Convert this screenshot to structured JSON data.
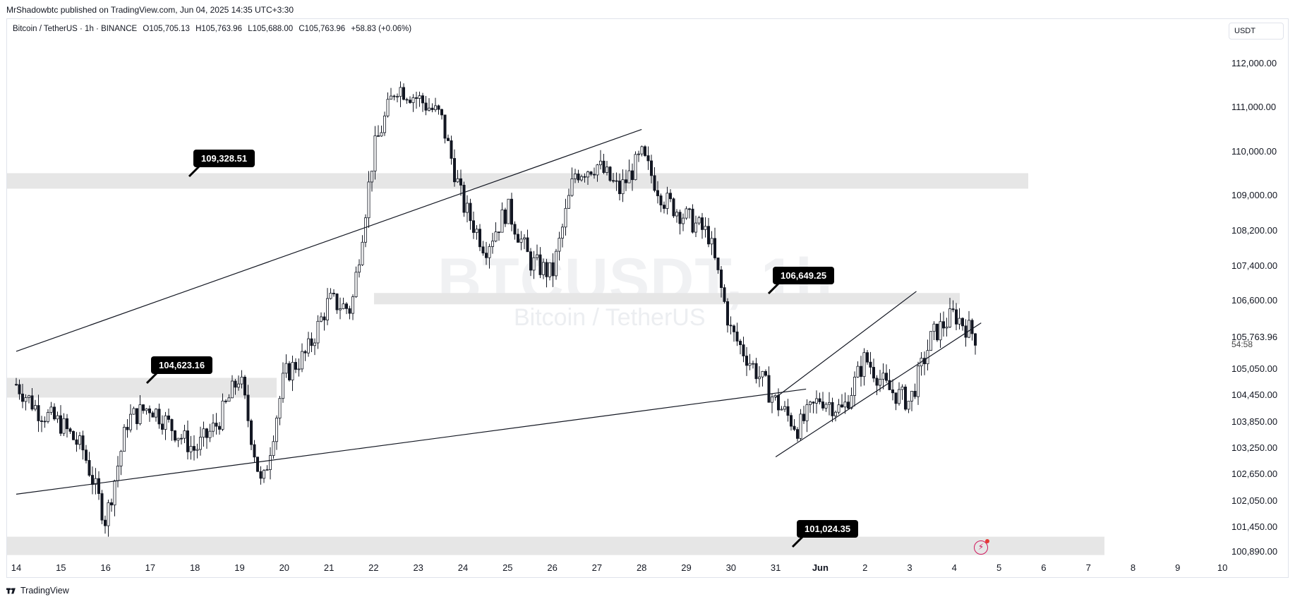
{
  "header": {
    "publisher": "MrShadowbtc published on TradingView.com, Jun 04, 2025 14:35 UTC+3:30"
  },
  "symbol": {
    "name": "Bitcoin / TetherUS · 1h · BINANCE",
    "open": "O105,705.13",
    "high": "H105,763.96",
    "low": "L105,688.00",
    "close": "C105,763.96",
    "change": "+58.83 (+0.06%)"
  },
  "currency": "USDT",
  "watermark": {
    "title": "BTCUSDT, 1h",
    "subtitle": "Bitcoin / TetherUS"
  },
  "price_axis": [
    "112,000.00",
    "111,000.00",
    "110,000.00",
    "109,000.00",
    "108,200.00",
    "107,400.00",
    "106,600.00",
    "105,763.96",
    "105,050.00",
    "104,450.00",
    "103,850.00",
    "103,250.00",
    "102,650.00",
    "102,050.00",
    "101,450.00",
    "100,890.00"
  ],
  "countdown": "54:58",
  "time_axis": [
    "14",
    "15",
    "16",
    "17",
    "18",
    "19",
    "20",
    "21",
    "22",
    "23",
    "24",
    "25",
    "26",
    "27",
    "28",
    "29",
    "30",
    "31",
    "Jun",
    "2",
    "3",
    "4",
    "5",
    "6",
    "7",
    "8",
    "9",
    "10"
  ],
  "callouts": [
    "109,328.51",
    "106,649.25",
    "104,623.16",
    "101,024.35"
  ],
  "footer": {
    "brand": "TradingView"
  },
  "colors": {
    "candle": "#131722",
    "zone": "#e6e6e6",
    "callout_bg": "#000000",
    "lightning": "#d0175c"
  },
  "chart_data": {
    "type": "candlestick",
    "symbol": "Bitcoin / TetherUS",
    "interval": "1h",
    "exchange": "BINANCE",
    "ylim": [
      100600,
      112600
    ],
    "x_range": [
      "May 14",
      "Jun 10"
    ],
    "last_price": 105763.96,
    "zones": [
      {
        "price": 109328.51,
        "label": "109,328.51"
      },
      {
        "price": 106649.25,
        "label": "106,649.25"
      },
      {
        "price": 104623.16,
        "label": "104,623.16"
      },
      {
        "price": 101024.35,
        "label": "101,024.35"
      }
    ],
    "trendlines": [
      {
        "from": {
          "date": "May 14",
          "price": 102200
        },
        "to": {
          "date": "May 31",
          "price": 104500
        }
      },
      {
        "from": {
          "date": "May 14",
          "price": 105450
        },
        "to": {
          "date": "May 28",
          "price": 110500
        }
      },
      {
        "from": {
          "date": "May 31",
          "price": 103050
        },
        "to": {
          "date": "Jun 4",
          "price": 105700
        }
      },
      {
        "from": {
          "date": "May 31",
          "price": 104400
        },
        "to": {
          "date": "Jun 3",
          "price": 106700
        }
      }
    ],
    "path": [
      [
        "May 14 00:00",
        104700
      ],
      [
        "May 14 12:00",
        104100
      ],
      [
        "May 15 00:00",
        103800
      ],
      [
        "May 15 12:00",
        103200
      ],
      [
        "May 16 00:00",
        101600
      ],
      [
        "May 16 12:00",
        103900
      ],
      [
        "May 17 00:00",
        104200
      ],
      [
        "May 17 12:00",
        103700
      ],
      [
        "May 18 00:00",
        103200
      ],
      [
        "May 18 12:00",
        103800
      ],
      [
        "May 19 00:00",
        104900
      ],
      [
        "May 19 12:00",
        102300
      ],
      [
        "May 20 00:00",
        104900
      ],
      [
        "May 20 12:00",
        105400
      ],
      [
        "May 21 00:00",
        106600
      ],
      [
        "May 21 12:00",
        106400
      ],
      [
        "May 22 00:00",
        110000
      ],
      [
        "May 22 12:00",
        111500
      ],
      [
        "May 23 00:00",
        111200
      ],
      [
        "May 23 12:00",
        110800
      ],
      [
        "May 24 00:00",
        108800
      ],
      [
        "May 24 12:00",
        107800
      ],
      [
        "May 25 00:00",
        108700
      ],
      [
        "May 25 12:00",
        107500
      ],
      [
        "May 26 00:00",
        107200
      ],
      [
        "May 26 12:00",
        109500
      ],
      [
        "May 27 00:00",
        109700
      ],
      [
        "May 27 12:00",
        109100
      ],
      [
        "May 28 00:00",
        109900
      ],
      [
        "May 28 12:00",
        108900
      ],
      [
        "May 29 00:00",
        108500
      ],
      [
        "May 29 12:00",
        108100
      ],
      [
        "May 30 00:00",
        105900
      ],
      [
        "May 30 12:00",
        105100
      ],
      [
        "May 31 00:00",
        104300
      ],
      [
        "May 31 12:00",
        103700
      ],
      [
        "Jun 1 00:00",
        104400
      ],
      [
        "Jun 1 12:00",
        104100
      ],
      [
        "Jun 2 00:00",
        105300
      ],
      [
        "Jun 2 12:00",
        104600
      ],
      [
        "Jun 3 00:00",
        104300
      ],
      [
        "Jun 3 12:00",
        105800
      ],
      [
        "Jun 4 00:00",
        106300
      ],
      [
        "Jun 4 12:00",
        105760
      ]
    ]
  }
}
